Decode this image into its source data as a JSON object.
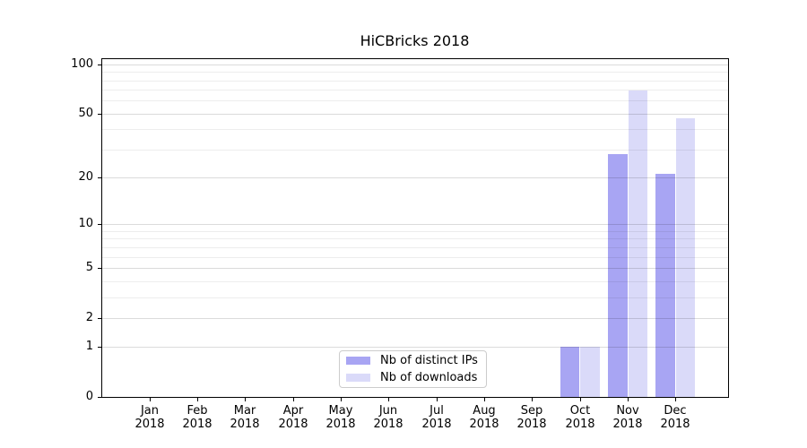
{
  "chart_data": {
    "type": "bar",
    "title": "HiCBricks 2018",
    "categories": [
      "Jan",
      "Feb",
      "Mar",
      "Apr",
      "May",
      "Jun",
      "Jul",
      "Aug",
      "Sep",
      "Oct",
      "Nov",
      "Dec"
    ],
    "year_label": "2018",
    "series": [
      {
        "name": "Nb of distinct IPs",
        "color": "#a8a5f3",
        "values": [
          0,
          0,
          0,
          0,
          0,
          0,
          0,
          0,
          0,
          1,
          28,
          21
        ]
      },
      {
        "name": "Nb of downloads",
        "color": "#dadaf9",
        "values": [
          0,
          0,
          0,
          0,
          0,
          0,
          0,
          0,
          0,
          1,
          69,
          47
        ]
      }
    ],
    "xlabel": "",
    "ylabel": "",
    "y_scale": "log1p",
    "y_ticks": [
      0,
      1,
      2,
      5,
      10,
      20,
      50,
      100
    ],
    "y_minor_ticks": [
      3,
      4,
      6,
      7,
      8,
      9,
      30,
      40,
      60,
      70,
      80,
      90
    ],
    "y_max": 109,
    "grid": true,
    "legend_position": "lower center"
  },
  "colors": {
    "background": "#ffffff",
    "spine": "#000000",
    "grid_major": "rgba(0,0,0,0.14)",
    "grid_minor": "rgba(0,0,0,0.07)",
    "legend_border": "#cccccc"
  }
}
